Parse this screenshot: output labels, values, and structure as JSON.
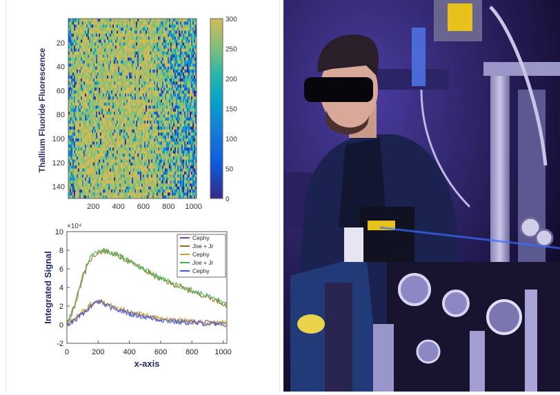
{
  "chart_data": [
    {
      "type": "heatmap",
      "ylabel": "Thallium Fluoride Fluorescence",
      "xlabel": "",
      "x_ticks": [
        200,
        400,
        600,
        800,
        1000
      ],
      "y_ticks": [
        20,
        40,
        60,
        80,
        100,
        120,
        140
      ],
      "xlim": [
        0,
        1024
      ],
      "ylim": [
        0,
        150
      ],
      "y_reversed": true,
      "colorbar": {
        "range": [
          0,
          300
        ],
        "ticks": [
          0,
          50,
          100,
          150,
          200,
          250,
          300
        ],
        "colormap": "parula"
      },
      "description_of_values": {
        "dense_band_x_range": [
          50,
          700
        ],
        "dense_band_level": 290,
        "sparse_region_level_range": [
          0,
          300
        ]
      }
    },
    {
      "type": "line",
      "ylabel": "Integrated Signal",
      "xlabel": "x-axis",
      "y_exponent": "×10⁴",
      "xlim": [
        0,
        1024
      ],
      "ylim": [
        -2,
        10
      ],
      "x_ticks": [
        0,
        200,
        400,
        600,
        800,
        1000
      ],
      "y_ticks": [
        -2,
        0,
        2,
        4,
        6,
        8,
        10
      ],
      "legend_position": "top-right",
      "series": [
        {
          "name": "Cephy",
          "color": "#7b3fa0",
          "x": [
            0,
            50,
            100,
            150,
            200,
            250,
            300,
            400,
            500,
            600,
            700,
            800,
            900,
            1000,
            1024
          ],
          "values": [
            0.0,
            0.5,
            1.2,
            2.0,
            2.6,
            2.2,
            1.8,
            1.3,
            0.9,
            0.6,
            0.4,
            0.3,
            0.2,
            0.1,
            0.1
          ]
        },
        {
          "name": "Joe + Jr",
          "color": "#a0631c",
          "x": [
            0,
            50,
            100,
            150,
            200,
            250,
            300,
            400,
            500,
            600,
            700,
            800,
            900,
            1000,
            1024
          ],
          "values": [
            0.0,
            2.0,
            5.0,
            7.0,
            7.8,
            7.9,
            7.6,
            6.8,
            5.8,
            4.9,
            4.2,
            3.6,
            3.0,
            2.3,
            1.9
          ]
        },
        {
          "name": "Cephy",
          "color": "#c9a227",
          "x": [
            0,
            50,
            100,
            150,
            200,
            250,
            300,
            400,
            500,
            600,
            700,
            800,
            900,
            1000,
            1024
          ],
          "values": [
            0.0,
            0.6,
            1.4,
            2.2,
            2.7,
            2.3,
            1.9,
            1.4,
            1.0,
            0.7,
            0.5,
            0.3,
            0.2,
            0.2,
            0.1
          ]
        },
        {
          "name": "Joe + Jr",
          "color": "#3fb34f",
          "x": [
            0,
            50,
            100,
            150,
            200,
            250,
            300,
            400,
            500,
            600,
            700,
            800,
            900,
            1000,
            1024
          ],
          "values": [
            0.0,
            2.2,
            5.3,
            7.3,
            8.0,
            8.0,
            7.7,
            6.9,
            5.9,
            5.0,
            4.3,
            3.7,
            3.1,
            2.4,
            2.0
          ]
        },
        {
          "name": "Cephy",
          "color": "#3a5bd9",
          "x": [
            0,
            50,
            100,
            150,
            200,
            250,
            300,
            400,
            500,
            600,
            700,
            800,
            900,
            1000,
            1024
          ],
          "values": [
            0.0,
            0.4,
            1.1,
            1.9,
            2.5,
            2.1,
            1.7,
            1.2,
            0.8,
            0.5,
            0.3,
            0.2,
            0.1,
            0.0,
            0.0
          ]
        }
      ]
    }
  ],
  "photo": {
    "subject": "person wearing dark laser safety goggles in an optics lab",
    "colors": {
      "background": "#1a1340",
      "accent": "#3d6bff",
      "warning": "#e8c21a"
    }
  }
}
